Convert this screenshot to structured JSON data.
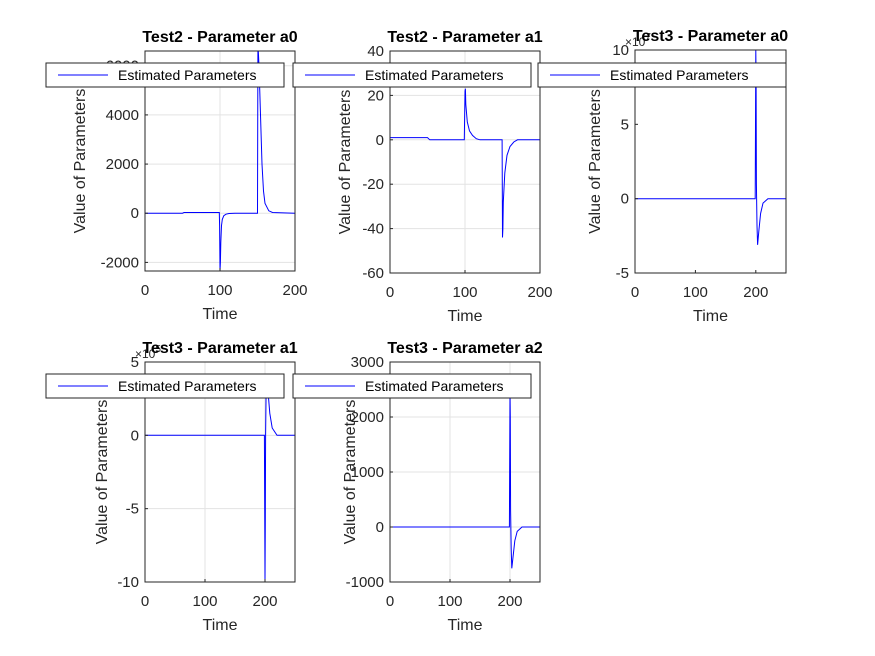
{
  "chart_data": [
    {
      "type": "line",
      "title": "Test2 - Parameter a0",
      "xlabel": "Time",
      "ylabel": "Value of Parameters",
      "xlim": [
        0,
        200
      ],
      "ylim": [
        -2350,
        6600
      ],
      "xticks": [
        0,
        100,
        200
      ],
      "yticks": [
        -2000,
        0,
        2000,
        4000,
        6000
      ],
      "grid": "on",
      "legend": {
        "location": "top",
        "entries": [
          "Estimated Parameters"
        ]
      },
      "series": [
        {
          "name": "Estimated Parameters",
          "color": "#0000ff",
          "x": [
            0,
            50,
            52,
            99,
            99.5,
            100,
            100.5,
            101,
            102,
            103,
            105,
            108,
            112,
            120,
            150,
            150.5,
            151,
            152,
            154,
            156,
            158,
            160,
            165,
            170,
            200
          ],
          "y": [
            0,
            0,
            30,
            30,
            -500,
            -2350,
            -2000,
            -1200,
            -500,
            -250,
            -100,
            -40,
            -10,
            0,
            0,
            6600,
            6600,
            6000,
            4000,
            2000,
            900,
            400,
            100,
            30,
            0
          ]
        }
      ]
    },
    {
      "type": "line",
      "title": "Test2 - Parameter a1",
      "xlabel": "Time",
      "ylabel": "Value of Parameters",
      "xlim": [
        0,
        200
      ],
      "ylim": [
        -60,
        40
      ],
      "xticks": [
        0,
        100,
        200
      ],
      "yticks": [
        -60,
        -40,
        -20,
        0,
        20,
        40
      ],
      "grid": "on",
      "legend": {
        "location": "top",
        "entries": [
          "Estimated Parameters"
        ]
      },
      "series": [
        {
          "name": "Estimated Parameters",
          "color": "#0000ff",
          "x": [
            0,
            50,
            53,
            99,
            100,
            100.5,
            101,
            103,
            106,
            110,
            115,
            120,
            149.5,
            150,
            150.5,
            151,
            153,
            156,
            160,
            165,
            170,
            200
          ],
          "y": [
            1,
            1,
            0,
            0,
            22,
            23,
            16,
            8,
            4,
            2,
            0.5,
            0,
            0,
            -44,
            -40,
            -28,
            -15,
            -7,
            -3,
            -1,
            0,
            0
          ]
        }
      ]
    },
    {
      "type": "line",
      "title": "Test3 - Parameter a0",
      "xlabel": "Time",
      "ylabel": "Value of Parameters",
      "exponent_label": "10^7",
      "xlim": [
        0,
        250
      ],
      "ylim": [
        -5,
        10
      ],
      "xticks": [
        0,
        100,
        200
      ],
      "yticks": [
        -5,
        0,
        5,
        10
      ],
      "grid": "off",
      "legend": {
        "location": "top",
        "entries": [
          "Estimated Parameters"
        ]
      },
      "series": [
        {
          "name": "Estimated Parameters",
          "color": "#0000ff",
          "x": [
            0,
            199,
            200,
            200.5,
            201,
            202,
            203,
            205,
            208,
            212,
            220,
            250
          ],
          "y": [
            0,
            0,
            10,
            8,
            1,
            -1.8,
            -3.1,
            -2.2,
            -1,
            -0.3,
            0,
            0
          ]
        }
      ]
    },
    {
      "type": "line",
      "title": "Test3 - Parameter a1",
      "xlabel": "Time",
      "ylabel": "Value of Parameters",
      "exponent_label": "10^5",
      "xlim": [
        0,
        250
      ],
      "ylim": [
        -10,
        5
      ],
      "xticks": [
        0,
        100,
        200
      ],
      "yticks": [
        -10,
        -5,
        0,
        5
      ],
      "grid": "on",
      "legend": {
        "location": "top",
        "entries": [
          "Estimated Parameters"
        ]
      },
      "series": [
        {
          "name": "Estimated Parameters",
          "color": "#0000ff",
          "x": [
            0,
            199,
            200,
            200.5,
            201,
            202,
            203,
            205,
            208,
            212,
            220,
            250
          ],
          "y": [
            0,
            0,
            -10,
            -6,
            0,
            3.5,
            4,
            3,
            1.5,
            0.5,
            0,
            0
          ]
        }
      ]
    },
    {
      "type": "line",
      "title": "Test3 - Parameter a2",
      "xlabel": "Time",
      "ylabel": "Value of Parameters",
      "xlim": [
        0,
        250
      ],
      "ylim": [
        -1000,
        3000
      ],
      "xticks": [
        0,
        100,
        200
      ],
      "yticks": [
        -1000,
        0,
        1000,
        2000,
        3000
      ],
      "grid": "on",
      "legend": {
        "location": "top",
        "entries": [
          "Estimated Parameters"
        ]
      },
      "series": [
        {
          "name": "Estimated Parameters",
          "color": "#0000ff",
          "x": [
            0,
            199,
            200,
            200.5,
            201,
            202,
            203,
            205,
            208,
            212,
            220,
            250
          ],
          "y": [
            0,
            0,
            2500,
            2000,
            300,
            -400,
            -750,
            -550,
            -250,
            -80,
            0,
            0
          ]
        }
      ]
    }
  ]
}
